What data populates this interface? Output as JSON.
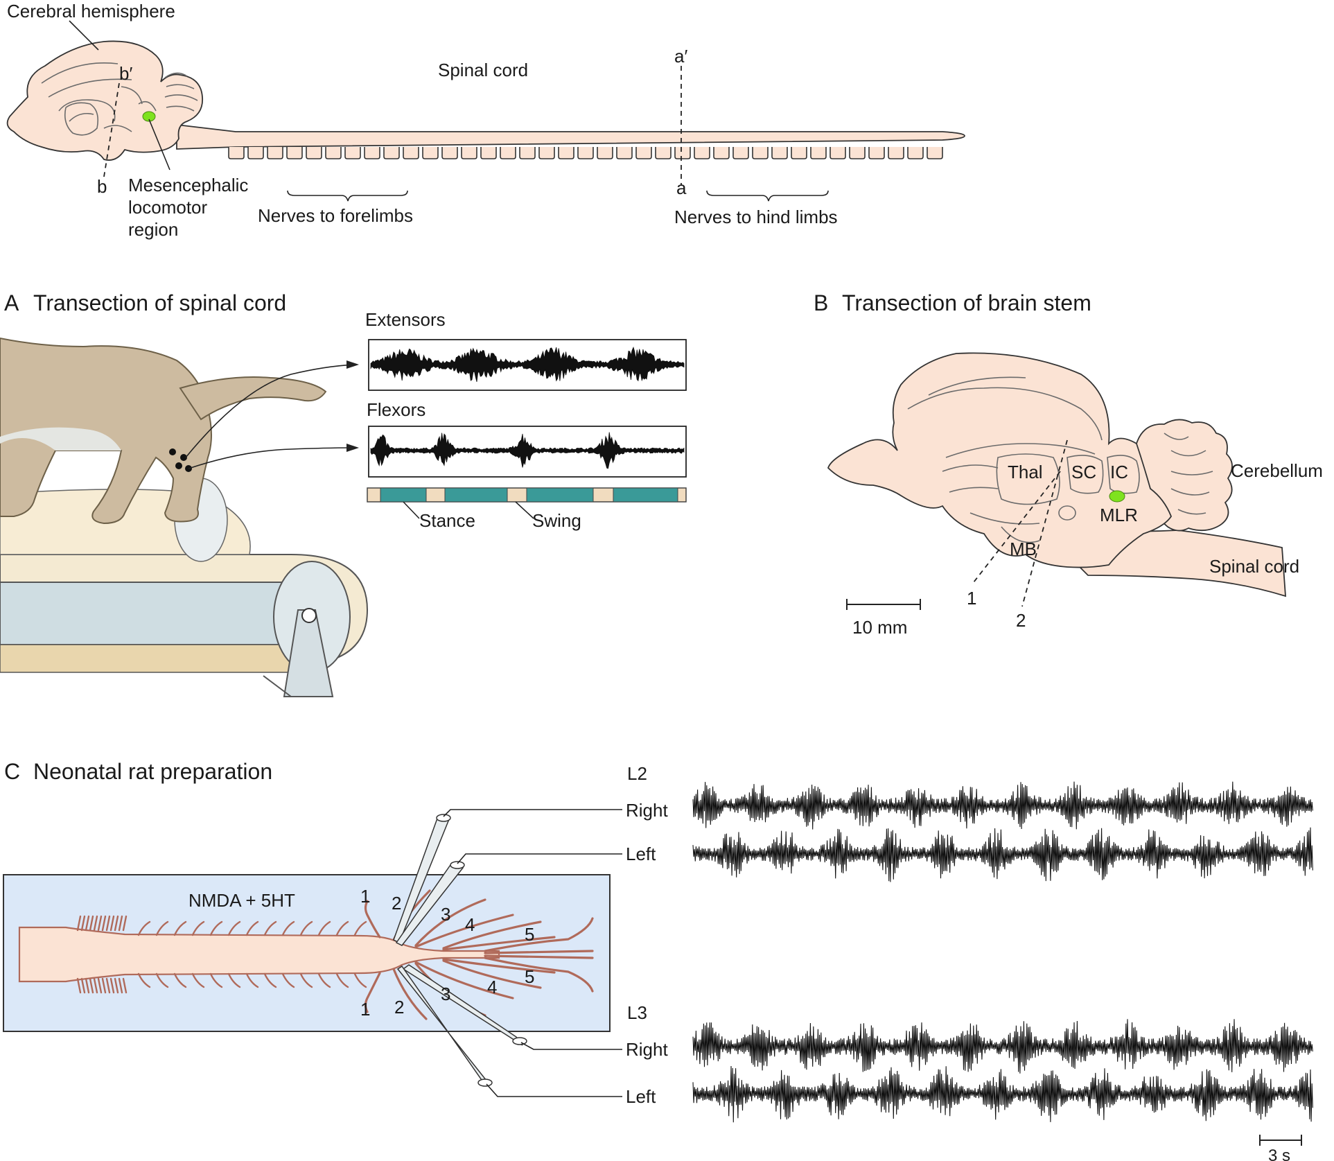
{
  "top": {
    "cerebral_hemisphere": "Cerebral hemisphere",
    "spinal_cord": "Spinal cord",
    "b_prime": "b′",
    "b": "b",
    "a_prime": "a′",
    "a": "a",
    "mlr_line1": "Mesencephalic",
    "mlr_line2": "locomotor",
    "mlr_line3": "region",
    "nerves_forelimbs": "Nerves to forelimbs",
    "nerves_hindlimbs": "Nerves to hind limbs"
  },
  "panel_a": {
    "letter": "A",
    "title": "Transection of spinal cord",
    "extensors": "Extensors",
    "flexors": "Flexors",
    "stance": "Stance",
    "swing": "Swing"
  },
  "panel_b": {
    "letter": "B",
    "title": "Transection of brain stem",
    "thal": "Thal",
    "sc": "SC",
    "ic": "IC",
    "cerebellum": "Cerebellum",
    "mlr": "MLR",
    "mb": "MB",
    "spinal_cord": "Spinal cord",
    "cut1": "1",
    "cut2": "2",
    "scale": "10 mm"
  },
  "panel_c": {
    "letter": "C",
    "title": "Neonatal rat preparation",
    "bath": "NMDA + 5HT",
    "l2": "L2",
    "l3": "L3",
    "right": "Right",
    "left": "Left",
    "n1": "1",
    "n2": "2",
    "n3": "3",
    "n4": "4",
    "n5": "5",
    "scale": "3 s"
  },
  "colors": {
    "brain": "#fbe3d4",
    "mlr_green": "#7fe21f",
    "cat": "#cdbba0",
    "stance": "#3a9a98",
    "swing": "#f1dcbf",
    "bath": "#dbe8f8",
    "nerve": "#b06a5a"
  }
}
